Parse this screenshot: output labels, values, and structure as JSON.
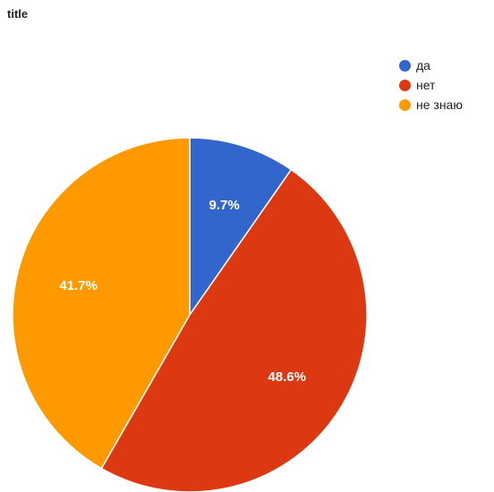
{
  "chart_data": {
    "type": "pie",
    "title": "title",
    "legend_position": "right",
    "slices": [
      {
        "label": "да",
        "value": 9.7,
        "display": "9.7%",
        "color": "#3366cc"
      },
      {
        "label": "нет",
        "value": 48.6,
        "display": "48.6%",
        "color": "#dc3912"
      },
      {
        "label": "не знаю",
        "value": 41.7,
        "display": "41.7%",
        "color": "#ff9900"
      }
    ]
  }
}
